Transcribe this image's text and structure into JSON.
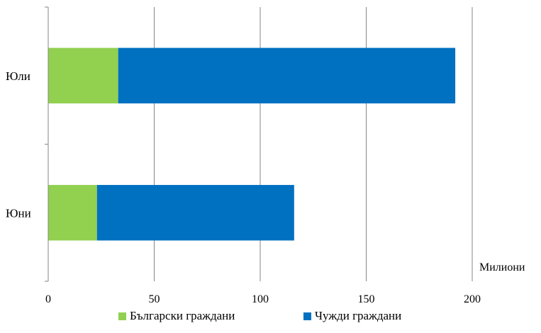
{
  "chart_data": {
    "type": "bar",
    "orientation": "horizontal",
    "stacked": true,
    "categories": [
      "Юли",
      "Юни"
    ],
    "series": [
      {
        "name": "Български граждани",
        "color": "#92D050",
        "values": [
          33,
          23
        ]
      },
      {
        "name": "Чужди граждани",
        "color": "#0070C0",
        "values": [
          159,
          93
        ]
      }
    ],
    "x_ticks": [
      0,
      50,
      100,
      150,
      200
    ],
    "xlim": [
      0,
      200
    ],
    "unit_label": "Милиони",
    "grid": true,
    "legend_position": "bottom"
  }
}
